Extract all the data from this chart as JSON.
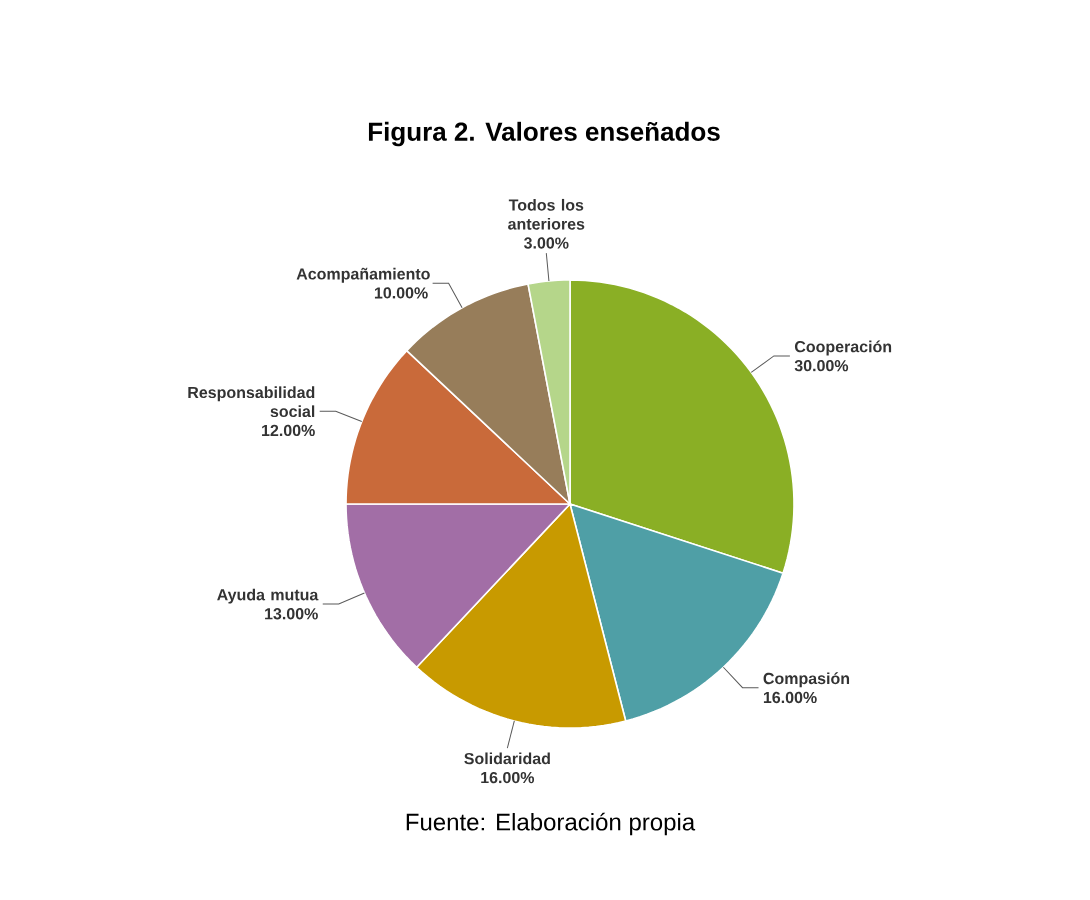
{
  "chart_data": {
    "type": "pie",
    "title": "Figura 2. Valores enseñados",
    "categories": [
      "Cooperación",
      "Compasión",
      "Solidaridad",
      "Ayuda mutua",
      "Responsabilidad social",
      "Acompañamiento",
      "Todos los anteriores"
    ],
    "values": [
      30,
      16,
      16,
      13,
      12,
      10,
      3
    ],
    "value_labels": [
      "30.00%",
      "16.00%",
      "16.00%",
      "13.00%",
      "12.00%",
      "10.00%",
      "3.00%"
    ],
    "colors": [
      "#8aaf25",
      "#4f9fa6",
      "#c89a00",
      "#a26ea6",
      "#c96a3a",
      "#977d5a",
      "#b5d68a"
    ],
    "annotations": [
      "Fuente: Elaboración propia"
    ]
  }
}
